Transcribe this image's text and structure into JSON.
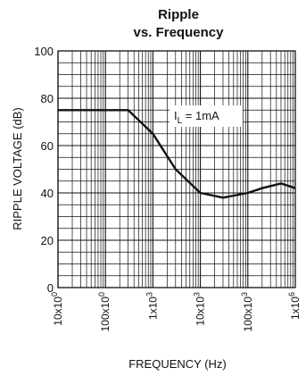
{
  "chart_data": {
    "type": "line",
    "title_lines": [
      "Ripple",
      "vs. Frequency"
    ],
    "xlabel": "FREQUENCY (Hz)",
    "ylabel": "RIPPLE VOLTAGE (dB)",
    "x_scale": "log",
    "xlim": [
      10,
      1000000
    ],
    "ylim": [
      0,
      100
    ],
    "x_ticks": [
      {
        "value": 10,
        "label": "10x10"
      },
      {
        "value": 100,
        "label": "100x10"
      },
      {
        "value": 1000,
        "label": "1x10"
      },
      {
        "value": 10000,
        "label": "10x10"
      },
      {
        "value": 100000,
        "label": "100x10"
      },
      {
        "value": 1000000,
        "label": "1x10"
      }
    ],
    "x_tick_exponents": [
      "0",
      "0",
      "3",
      "3",
      "3",
      "6"
    ],
    "y_ticks": [
      0,
      20,
      40,
      60,
      80,
      100
    ],
    "grid": true,
    "annotation": {
      "main": "I",
      "sub": "L",
      "rest": " = 1mA"
    },
    "series": [
      {
        "x": [
          10,
          20,
          50,
          100,
          300,
          1000,
          3000,
          10000,
          30000,
          100000,
          200000,
          500000,
          1000000
        ],
        "y": [
          75,
          75,
          75,
          75,
          75,
          65,
          50,
          40,
          38,
          40,
          42,
          44,
          42
        ]
      }
    ]
  }
}
